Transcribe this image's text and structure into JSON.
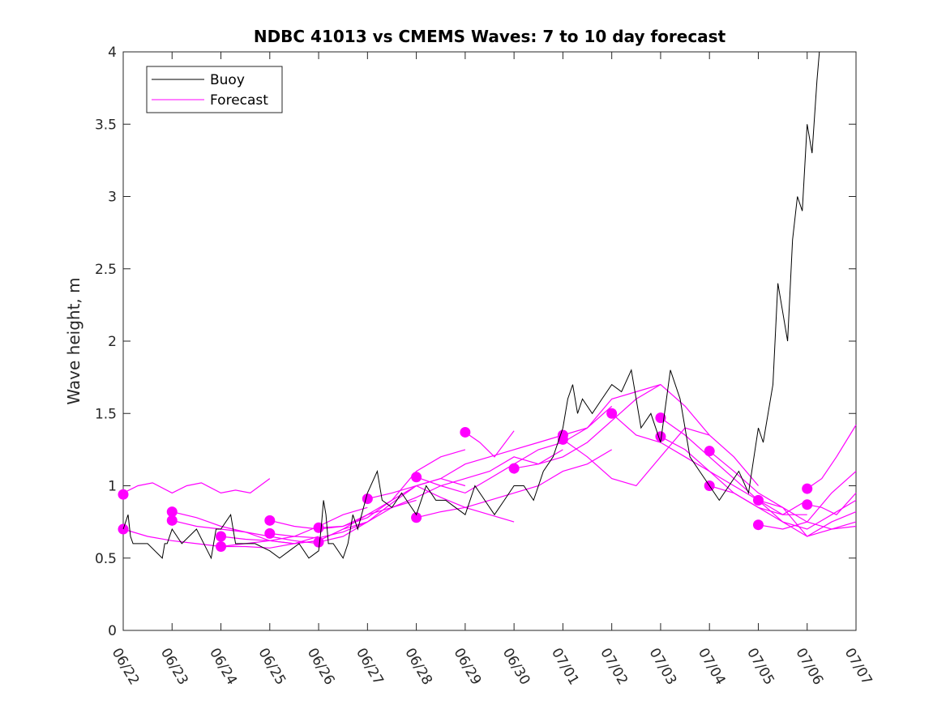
{
  "chart_data": {
    "type": "line",
    "title": "NDBC 41013 vs CMEMS Waves: 7 to 10 day forecast",
    "xlabel": "",
    "ylabel": "Wave height, m",
    "ylim": [
      0,
      4
    ],
    "xlim": [
      "06/22",
      "07/07"
    ],
    "x_ticks": [
      "06/22",
      "06/23",
      "06/24",
      "06/25",
      "06/26",
      "06/27",
      "06/28",
      "06/29",
      "06/30",
      "07/01",
      "07/02",
      "07/03",
      "07/04",
      "07/05",
      "07/06",
      "07/07"
    ],
    "y_ticks": [
      "0",
      "0.5",
      "1",
      "1.5",
      "2",
      "2.5",
      "3",
      "3.5",
      "4"
    ],
    "grid": false,
    "legend_position": "top-left",
    "colors": {
      "buoy": "#000000",
      "forecast": "#ff00ff",
      "axes": "#262626"
    },
    "legend": [
      {
        "label": "Buoy",
        "series": "buoy"
      },
      {
        "label": "Forecast",
        "series": "forecast"
      }
    ],
    "buoy": {
      "name": "Buoy",
      "x_days": [
        0,
        0.1,
        0.15,
        0.2,
        0.3,
        0.5,
        0.8,
        0.85,
        0.9,
        1.0,
        1.2,
        1.5,
        1.8,
        1.9,
        2.0,
        2.2,
        2.3,
        2.5,
        2.7,
        3.0,
        3.2,
        3.4,
        3.6,
        3.8,
        4.0,
        4.05,
        4.1,
        4.15,
        4.2,
        4.3,
        4.5,
        4.6,
        4.7,
        4.8,
        5.0,
        5.2,
        5.3,
        5.5,
        5.7,
        6.0,
        6.2,
        6.4,
        6.6,
        6.8,
        7.0,
        7.2,
        7.4,
        7.6,
        7.8,
        8.0,
        8.2,
        8.4,
        8.6,
        8.8,
        9.0,
        9.1,
        9.2,
        9.3,
        9.4,
        9.6,
        9.8,
        10.0,
        10.2,
        10.4,
        10.6,
        10.8,
        11.0,
        11.2,
        11.4,
        11.6,
        11.8,
        12.0,
        12.2,
        12.4,
        12.6,
        12.8,
        13.0,
        13.1,
        13.2,
        13.3,
        13.4,
        13.5,
        13.6,
        13.7,
        13.8,
        13.9,
        14.0,
        14.1,
        14.2,
        14.25
      ],
      "values": [
        0.7,
        0.8,
        0.65,
        0.6,
        0.6,
        0.6,
        0.5,
        0.6,
        0.6,
        0.7,
        0.6,
        0.7,
        0.5,
        0.7,
        0.7,
        0.8,
        0.6,
        0.6,
        0.6,
        0.55,
        0.5,
        0.55,
        0.6,
        0.5,
        0.55,
        0.7,
        0.9,
        0.8,
        0.6,
        0.6,
        0.5,
        0.6,
        0.8,
        0.7,
        0.95,
        1.1,
        0.9,
        0.85,
        0.95,
        0.8,
        1.0,
        0.9,
        0.9,
        0.85,
        0.8,
        1.0,
        0.9,
        0.8,
        0.9,
        1.0,
        1.0,
        0.9,
        1.1,
        1.2,
        1.4,
        1.6,
        1.7,
        1.5,
        1.6,
        1.5,
        1.6,
        1.7,
        1.65,
        1.8,
        1.4,
        1.5,
        1.3,
        1.8,
        1.6,
        1.2,
        1.1,
        1.0,
        0.9,
        1.0,
        1.1,
        0.95,
        1.4,
        1.3,
        1.5,
        1.7,
        2.4,
        2.2,
        2.0,
        2.7,
        3.0,
        2.9,
        3.5,
        3.3,
        3.8,
        4.0
      ]
    },
    "forecast_series": [
      {
        "name": "Forecast",
        "x_days": [
          0,
          0.3,
          0.6,
          1.0,
          1.3,
          1.6,
          2.0,
          2.3,
          2.6,
          3.0
        ],
        "values": [
          0.95,
          1.0,
          1.02,
          0.95,
          1.0,
          1.02,
          0.95,
          0.97,
          0.95,
          1.05
        ],
        "marker_x": 0,
        "marker_y": 0.94
      },
      {
        "name": "Forecast",
        "x_days": [
          0,
          0.5,
          1.0,
          1.5,
          2.0,
          2.5,
          3.0,
          3.5,
          4.0
        ],
        "values": [
          0.7,
          0.65,
          0.62,
          0.6,
          0.58,
          0.58,
          0.57,
          0.6,
          0.65
        ],
        "marker_x": 0,
        "marker_y": 0.7
      },
      {
        "name": "Forecast",
        "x_days": [
          1,
          1.5,
          2.0,
          2.5,
          3.0,
          3.5,
          4.0
        ],
        "values": [
          0.82,
          0.78,
          0.72,
          0.68,
          0.65,
          0.62,
          0.6
        ],
        "marker_x": 1,
        "marker_y": 0.82
      },
      {
        "name": "Forecast",
        "x_days": [
          1,
          1.5,
          2.0,
          2.5,
          3.0,
          3.5,
          4.0,
          4.5,
          5.0
        ],
        "values": [
          0.76,
          0.72,
          0.7,
          0.68,
          0.62,
          0.6,
          0.62,
          0.7,
          0.75
        ],
        "marker_x": 1,
        "marker_y": 0.76
      },
      {
        "name": "Forecast",
        "x_days": [
          2,
          2.5,
          3.0,
          3.5,
          4.0,
          4.5,
          5.0,
          5.5,
          6.0
        ],
        "values": [
          0.65,
          0.63,
          0.62,
          0.6,
          0.62,
          0.7,
          0.8,
          0.85,
          0.9
        ],
        "marker_x": 2,
        "marker_y": 0.65
      },
      {
        "name": "Forecast",
        "x_days": [
          2,
          2.5,
          3.0,
          3.5,
          4.0,
          4.5,
          5.0
        ],
        "values": [
          0.58,
          0.6,
          0.62,
          0.65,
          0.72,
          0.8,
          0.85
        ],
        "marker_x": 2,
        "marker_y": 0.58
      },
      {
        "name": "Forecast",
        "x_days": [
          3,
          3.5,
          4.0,
          4.5,
          5.0,
          5.5,
          6.0,
          6.5,
          7.0
        ],
        "values": [
          0.76,
          0.72,
          0.7,
          0.72,
          0.78,
          0.9,
          1.1,
          1.2,
          1.25
        ],
        "marker_x": 3,
        "marker_y": 0.76
      },
      {
        "name": "Forecast",
        "x_days": [
          3,
          3.5,
          4.0,
          4.5,
          5.0,
          5.5,
          6.0,
          6.5,
          7.0
        ],
        "values": [
          0.67,
          0.65,
          0.64,
          0.68,
          0.75,
          0.88,
          1.0,
          1.05,
          1.0
        ],
        "marker_x": 3,
        "marker_y": 0.67
      },
      {
        "name": "Forecast",
        "x_days": [
          4,
          4.5,
          5.0,
          5.5,
          6.0,
          6.5,
          7.0,
          7.5,
          8.0
        ],
        "values": [
          0.71,
          0.72,
          0.8,
          0.9,
          1.0,
          0.92,
          0.85,
          0.8,
          0.75
        ],
        "marker_x": 4,
        "marker_y": 0.71
      },
      {
        "name": "Forecast",
        "x_days": [
          4,
          4.5,
          5.0,
          5.5,
          6.0,
          6.5,
          7.0,
          7.5,
          8.0,
          8.5,
          9.0
        ],
        "values": [
          0.61,
          0.65,
          0.75,
          0.85,
          0.92,
          1.0,
          1.05,
          1.1,
          1.2,
          1.15,
          1.25
        ],
        "marker_x": 4,
        "marker_y": 0.61
      },
      {
        "name": "Forecast",
        "x_days": [
          5,
          5.5,
          6.0,
          6.5,
          7.0,
          7.5,
          8.0,
          8.5,
          9.0
        ],
        "values": [
          0.91,
          0.95,
          1.0,
          1.05,
          1.15,
          1.2,
          1.25,
          1.3,
          1.35
        ],
        "marker_x": 5,
        "marker_y": 0.91
      },
      {
        "name": "Forecast",
        "x_days": [
          6,
          6.5,
          7.0,
          7.5,
          8.0,
          8.5,
          9.0,
          9.5,
          10.0
        ],
        "values": [
          1.06,
          1.0,
          0.95,
          1.05,
          1.15,
          1.25,
          1.3,
          1.4,
          1.55
        ],
        "marker_x": 6,
        "marker_y": 1.06
      },
      {
        "name": "Forecast",
        "x_days": [
          6,
          6.5,
          7.0,
          7.5,
          8.0,
          8.5,
          9.0,
          9.5,
          10.0
        ],
        "values": [
          0.78,
          0.82,
          0.85,
          0.9,
          0.95,
          1.0,
          1.1,
          1.15,
          1.25
        ],
        "marker_x": 6,
        "marker_y": 0.78
      },
      {
        "name": "Forecast",
        "x_days": [
          7,
          7.3,
          7.6,
          8.0
        ],
        "values": [
          1.37,
          1.3,
          1.2,
          1.38
        ],
        "marker_x": 7,
        "marker_y": 1.37
      },
      {
        "name": "Forecast",
        "x_days": [
          8,
          8.5,
          9.0,
          9.5,
          10.0,
          10.5,
          11.0
        ],
        "values": [
          1.12,
          1.15,
          1.2,
          1.3,
          1.45,
          1.6,
          1.7
        ],
        "marker_x": 8,
        "marker_y": 1.12
      },
      {
        "name": "Forecast",
        "x_days": [
          9,
          9.5,
          10.0,
          10.5,
          11.0,
          11.5,
          12.0
        ],
        "values": [
          1.35,
          1.4,
          1.6,
          1.65,
          1.7,
          1.55,
          1.35
        ],
        "marker_x": 9,
        "marker_y": 1.35
      },
      {
        "name": "Forecast",
        "x_days": [
          9,
          9.5,
          10.0,
          10.5,
          11.0,
          11.5,
          12.0,
          12.5,
          13.0
        ],
        "values": [
          1.32,
          1.2,
          1.05,
          1.0,
          1.2,
          1.4,
          1.35,
          1.2,
          1.0
        ],
        "marker_x": 9,
        "marker_y": 1.32
      },
      {
        "name": "Forecast",
        "x_days": [
          10,
          10.5,
          11.0,
          11.5,
          12.0,
          12.5,
          13.0,
          13.5,
          14.0
        ],
        "values": [
          1.5,
          1.35,
          1.3,
          1.2,
          1.1,
          1.0,
          0.9,
          0.8,
          0.8
        ],
        "marker_x": 10,
        "marker_y": 1.5
      },
      {
        "name": "Forecast",
        "x_days": [
          11,
          11.5,
          12.0,
          12.5,
          13.0,
          13.5,
          14.0,
          14.5,
          15.0
        ],
        "values": [
          1.47,
          1.35,
          1.2,
          1.05,
          0.9,
          0.75,
          0.7,
          0.8,
          0.9
        ],
        "marker_x": 11,
        "marker_y": 1.47
      },
      {
        "name": "Forecast",
        "x_days": [
          11,
          11.5,
          12.0,
          12.5,
          13.0,
          13.5,
          14.0
        ],
        "values": [
          1.34,
          1.25,
          1.1,
          0.95,
          0.85,
          0.8,
          0.9
        ],
        "marker_x": 11,
        "marker_y": 1.34
      },
      {
        "name": "Forecast",
        "x_days": [
          12,
          12.5,
          13.0,
          13.5,
          14.0,
          14.5,
          15.0
        ],
        "values": [
          1.24,
          1.1,
          0.95,
          0.85,
          0.75,
          0.7,
          0.75
        ],
        "marker_x": 12,
        "marker_y": 1.24
      },
      {
        "name": "Forecast",
        "x_days": [
          12,
          12.5,
          13.0,
          13.5,
          14.0,
          14.5,
          15.0
        ],
        "values": [
          1.0,
          0.95,
          0.85,
          0.75,
          0.65,
          0.7,
          0.72
        ],
        "marker_x": 12,
        "marker_y": 1.0
      },
      {
        "name": "Forecast",
        "x_days": [
          13,
          13.5,
          14.0,
          14.5,
          15.0
        ],
        "values": [
          0.9,
          0.85,
          0.65,
          0.75,
          0.82
        ],
        "marker_x": 13,
        "marker_y": 0.9
      },
      {
        "name": "Forecast",
        "x_days": [
          13,
          13.5,
          14.0,
          14.5,
          15.0
        ],
        "values": [
          0.73,
          0.7,
          0.75,
          0.95,
          1.1
        ],
        "marker_x": 13,
        "marker_y": 0.73
      },
      {
        "name": "Forecast",
        "x_days": [
          14,
          14.3,
          14.6,
          15.0
        ],
        "values": [
          0.98,
          1.05,
          1.2,
          1.42
        ],
        "marker_x": 14,
        "marker_y": 0.98
      },
      {
        "name": "Forecast",
        "x_days": [
          14,
          14.3,
          14.6,
          15.0
        ],
        "values": [
          0.87,
          0.85,
          0.8,
          0.95
        ],
        "marker_x": 14,
        "marker_y": 0.87
      }
    ]
  }
}
